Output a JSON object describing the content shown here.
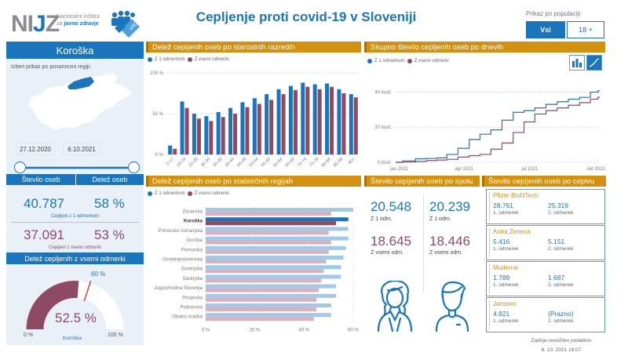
{
  "header": {
    "logo_text_prefix": "NI",
    "logo_text_j": "J",
    "logo_text_suffix": "Z",
    "logo_subtitle_line1": "Nacionalni inštitut",
    "logo_subtitle_line2_prefix": "za ",
    "logo_subtitle_line2_bold": "javno zdravje",
    "erco_label": "eRCO",
    "title": "Cepljenje proti covid-19 v Sloveniji",
    "population_label": "Prikaz po populaciji:",
    "population_options": [
      "Vsi",
      "18 +"
    ],
    "population_selected": "Vsi"
  },
  "left": {
    "region_title": "Koroška",
    "pick_label": "Izberi prikaz po posamezni regiji:",
    "date_from": "27.12.2020",
    "date_to": "6.10.2021",
    "stat_headers": [
      "Število oseb",
      "Delež oseb"
    ],
    "first_dose": {
      "count": "40.787",
      "share": "58 %",
      "caption": "Cepljeni z 1 odmerkom"
    },
    "all_doses": {
      "count": "37.091",
      "share": "53 %",
      "caption": "Cepljeni z vsemi odmerki"
    },
    "gauge": {
      "title": "Delež cepljenih z vsemi odmerki",
      "value_pct": 52.5,
      "value_label": "52.5 %",
      "target_pct": 60,
      "target_label": "60 %",
      "min_label": "0 %",
      "max_label": "100 %",
      "region_label": "Koroška",
      "fill_color": "#8e4a63"
    }
  },
  "colors": {
    "primary": "#1a75bc",
    "secondary": "#8e4a63",
    "header_accent": "#d4900f",
    "primary_light": "#9fcbe9",
    "secondary_light": "#d9b0bf"
  },
  "age_panel": {
    "title": "Delež cepljenih oseb po starostnih razredih",
    "legend": [
      "Z 1 odmerkom",
      "Z vsemi odmerki"
    ]
  },
  "daily_panel": {
    "title": "Skupno število cepljenih oseb po dnevih",
    "legend": [
      "Z 1 odmerkom",
      "Z vsemi odmerki"
    ],
    "view_buttons": [
      "bar-chart-view",
      "line-chart-view"
    ],
    "active_view": "line-chart-view"
  },
  "region_panel": {
    "title": "Delež cepljenih oseb po statističnih regijah",
    "legend": [
      "Z 1 odmerkom",
      "Z vsemi odmerki"
    ]
  },
  "gender_panel": {
    "title": "Število cepljenih oseb po spolu",
    "female": {
      "first": "20.548",
      "first_label": "Z 1 odm.",
      "all": "18.645",
      "all_label": "Z vsemi odm."
    },
    "male": {
      "first": "20.239",
      "first_label": "Z 1 odm.",
      "all": "18.446",
      "all_label": "Z vsemi odm."
    }
  },
  "vaccine_panel": {
    "title": "Število cepljenih oseb po cepivu",
    "dose1_label": "1. odmerek",
    "dose2_label": "2. odmerek",
    "vaccines": [
      {
        "name": "Pfizer-BioNTech",
        "dose1": "28.761",
        "dose2": "25.319"
      },
      {
        "name": "Astra Zeneca",
        "dose1": "5.416",
        "dose2": "5.151"
      },
      {
        "name": "Moderna",
        "dose1": "1.789",
        "dose2": "1.687"
      },
      {
        "name": "Janssen",
        "dose1": "4.821",
        "dose2": "(Prazno)"
      }
    ]
  },
  "footer": {
    "refresh_label": "Zadnja osvežitev podatkov",
    "refresh_time": "6. 10. 2021 18:07"
  },
  "chart_data": [
    {
      "type": "bar",
      "title": "Delež cepljenih oseb po starostnih razredih",
      "categories": [
        "0-17",
        "18-24",
        "25-29",
        "30-34",
        "35-39",
        "40-44",
        "45-49",
        "50-54",
        "55-59",
        "60-64",
        "65-69",
        "70-74",
        "75-79",
        "80-84",
        "85-89",
        "90+"
      ],
      "series": [
        {
          "name": "Z 1 odmerkom",
          "values": [
            11,
            65,
            50,
            47,
            52,
            57,
            64,
            69,
            74,
            80,
            84,
            88,
            86,
            87,
            80,
            74
          ]
        },
        {
          "name": "Z vsemi odmerki",
          "values": [
            7,
            57,
            44,
            41,
            46,
            50,
            58,
            62,
            67,
            74,
            79,
            83,
            80,
            83,
            75,
            70
          ]
        }
      ],
      "yticks": [
        "0 %",
        "50 %",
        "100 %"
      ],
      "ylim": [
        0,
        100
      ],
      "legend": "top-left",
      "grid": true
    },
    {
      "type": "line",
      "title": "Skupno število cepljenih oseb po dnevih",
      "x": [
        "2020-12-27",
        "2021-01-15",
        "2021-02-01",
        "2021-02-15",
        "2021-03-01",
        "2021-03-15",
        "2021-04-01",
        "2021-04-15",
        "2021-05-01",
        "2021-05-15",
        "2021-06-01",
        "2021-06-15",
        "2021-07-01",
        "2021-07-15",
        "2021-08-01",
        "2021-08-15",
        "2021-09-01",
        "2021-09-15",
        "2021-10-01",
        "2021-10-06"
      ],
      "series": [
        {
          "name": "Z 1 odmerkom",
          "values": [
            0,
            800,
            2000,
            2200,
            2500,
            4500,
            8000,
            13000,
            16000,
            18500,
            24000,
            28500,
            29500,
            31000,
            33000,
            34500,
            36000,
            37000,
            40000,
            40787
          ]
        },
        {
          "name": "Z vsemi odmerki",
          "values": [
            0,
            200,
            500,
            1000,
            1300,
            1700,
            3000,
            3800,
            4500,
            7500,
            11000,
            17000,
            23000,
            27500,
            29500,
            31000,
            32500,
            34000,
            36000,
            37091
          ]
        }
      ],
      "xticks": [
        "jan 2021",
        "apr 2021",
        "jul 2021",
        "okt 2021"
      ],
      "yticks": [
        "0 tisoč",
        "20 tisoč",
        "40 tisoč"
      ],
      "ylim": [
        0,
        42000
      ],
      "legend": "top-left",
      "grid": true
    },
    {
      "type": "bar",
      "orientation": "horizontal",
      "title": "Delež cepljenih oseb po statističnih regijah",
      "categories": [
        "Zasavska",
        "Koroška",
        "Primorsko notranjska",
        "Goriška",
        "Pomurska",
        "Osrednjeslovenska",
        "Gorenjska",
        "Savinjska",
        "Jugovzhodna Slovenija",
        "Posavska",
        "Podravska",
        "Obalno kraška"
      ],
      "highlighted": "Koroška",
      "series": [
        {
          "name": "Z 1 odmerkom",
          "values": [
            60,
            58,
            58,
            58,
            57,
            56,
            55,
            55,
            53,
            53,
            51,
            51
          ]
        },
        {
          "name": "Z vsemi odmerki",
          "values": [
            51,
            53,
            50,
            51,
            50,
            49,
            48,
            47,
            46,
            45,
            45,
            44
          ]
        }
      ],
      "xticks": [
        "0 %",
        "20 %",
        "40 %",
        "60 %"
      ],
      "xlim": [
        0,
        60
      ],
      "legend": "top-left",
      "grid": true
    }
  ]
}
